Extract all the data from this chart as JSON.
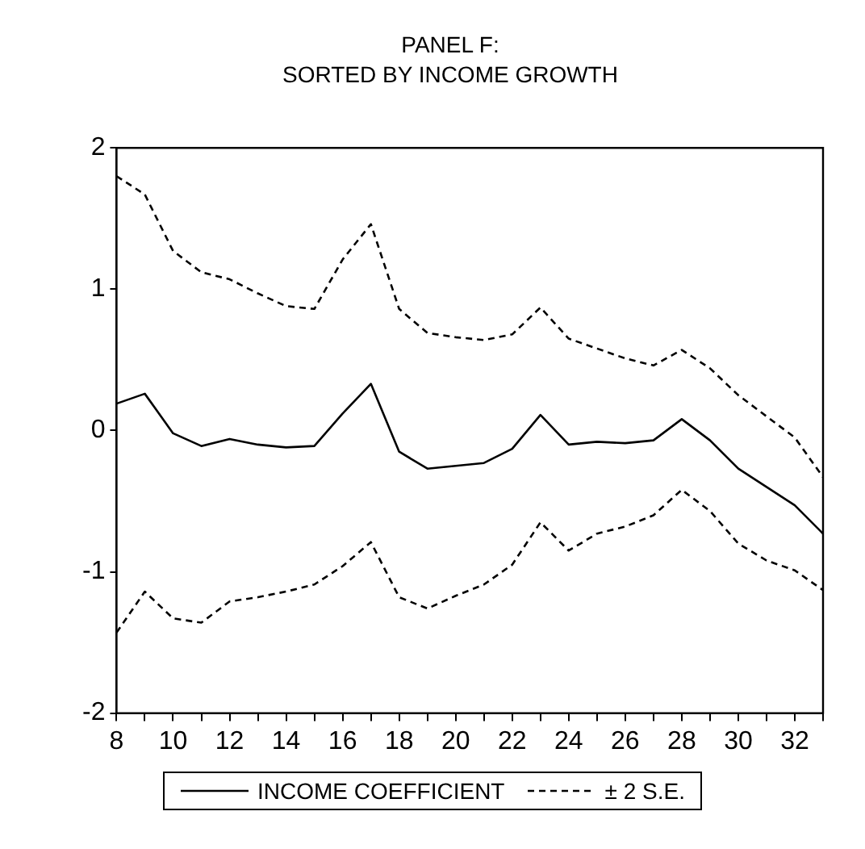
{
  "chart_data": {
    "type": "line",
    "title": "PANEL F:",
    "subtitle": "SORTED BY INCOME GROWTH",
    "x": [
      8,
      9,
      10,
      11,
      12,
      13,
      14,
      15,
      16,
      17,
      18,
      19,
      20,
      21,
      22,
      23,
      24,
      25,
      26,
      27,
      28,
      29,
      30,
      31,
      32,
      33
    ],
    "series": [
      {
        "name": "INCOME COEFFICIENT",
        "color": "#000000",
        "line_style": "solid",
        "values": [
          0.19,
          0.26,
          -0.02,
          -0.11,
          -0.06,
          -0.1,
          -0.12,
          -0.11,
          0.12,
          0.33,
          -0.15,
          -0.27,
          -0.25,
          -0.23,
          -0.13,
          0.11,
          -0.1,
          -0.08,
          -0.09,
          -0.07,
          0.08,
          -0.07,
          -0.27,
          -0.4,
          -0.53,
          -0.73
        ]
      },
      {
        "name": "± 2 S.E.",
        "color": "#000000",
        "line_style": "dashed",
        "values": [
          1.8,
          1.67,
          1.27,
          1.12,
          1.07,
          0.97,
          0.88,
          0.86,
          1.21,
          1.46,
          0.86,
          0.69,
          0.66,
          0.64,
          0.68,
          0.87,
          0.65,
          0.58,
          0.51,
          0.46,
          0.57,
          0.44,
          0.25,
          0.1,
          -0.05,
          -0.33
        ]
      },
      {
        "color": "#000000",
        "line_style": "dashed",
        "values": [
          -1.43,
          -1.14,
          -1.33,
          -1.36,
          -1.21,
          -1.18,
          -1.14,
          -1.09,
          -0.96,
          -0.79,
          -1.18,
          -1.26,
          -1.17,
          -1.09,
          -0.95,
          -0.65,
          -0.85,
          -0.73,
          -0.68,
          -0.6,
          -0.42,
          -0.57,
          -0.8,
          -0.92,
          -0.99,
          -1.13
        ]
      }
    ],
    "xlim": [
      8,
      33
    ],
    "xticks": [
      8,
      {
        "value": 9,
        "label": null
      },
      10,
      {
        "value": 11,
        "label": null
      },
      12,
      {
        "value": 13,
        "label": null
      },
      14,
      {
        "value": 15,
        "label": null
      },
      16,
      {
        "value": 17,
        "label": null
      },
      18,
      {
        "value": 19,
        "label": null
      },
      20,
      {
        "value": 21,
        "label": null
      },
      22,
      {
        "value": 23,
        "label": null
      },
      24,
      {
        "value": 25,
        "label": null
      },
      26,
      {
        "value": 27,
        "label": null
      },
      28,
      {
        "value": 29,
        "label": null
      },
      30,
      {
        "value": 31,
        "label": null
      },
      32,
      {
        "value": 33,
        "label": null
      }
    ],
    "ylim": [
      -2,
      2
    ],
    "yticks": [
      -2,
      -1,
      0,
      1,
      2
    ],
    "grid": false,
    "legend": "bottom",
    "marker": "none"
  }
}
